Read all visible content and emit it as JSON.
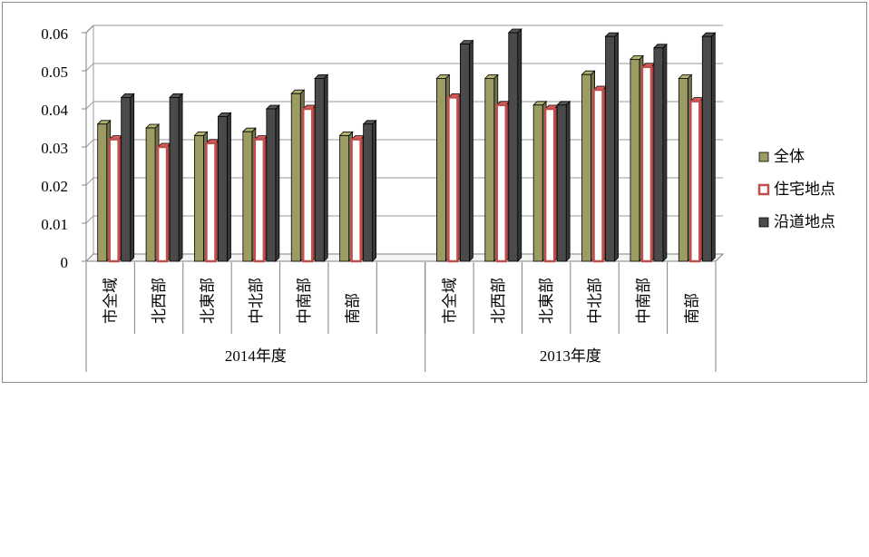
{
  "chart_data": {
    "type": "bar",
    "groups": [
      {
        "label": "2014年度",
        "categories": [
          "市全域",
          "北西部",
          "北東部",
          "中北部",
          "中南部",
          "南部"
        ]
      },
      {
        "label": "2013年度",
        "categories": [
          "市全域",
          "北西部",
          "北東部",
          "中北部",
          "中南部",
          "南部"
        ]
      }
    ],
    "series": [
      {
        "name": "全体",
        "color": "#9b9b63",
        "values": [
          0.036,
          0.035,
          0.033,
          0.034,
          0.044,
          0.033,
          0.048,
          0.048,
          0.041,
          0.049,
          0.053,
          0.048
        ]
      },
      {
        "name": "住宅地点",
        "color": "#c0504d",
        "values": [
          0.032,
          0.03,
          0.031,
          0.032,
          0.04,
          0.032,
          0.043,
          0.041,
          0.04,
          0.045,
          0.051,
          0.042
        ]
      },
      {
        "name": "沿道地点",
        "color": "#4a4a4a",
        "values": [
          0.043,
          0.043,
          0.038,
          0.04,
          0.048,
          0.036,
          0.057,
          0.06,
          0.041,
          0.059,
          0.056,
          0.059
        ]
      }
    ],
    "yticks": [
      "0",
      "0.01",
      "0.02",
      "0.03",
      "0.04",
      "0.05",
      "0.06"
    ],
    "ylim": [
      0,
      0.06
    ],
    "grid": true,
    "legend_position": "right"
  }
}
